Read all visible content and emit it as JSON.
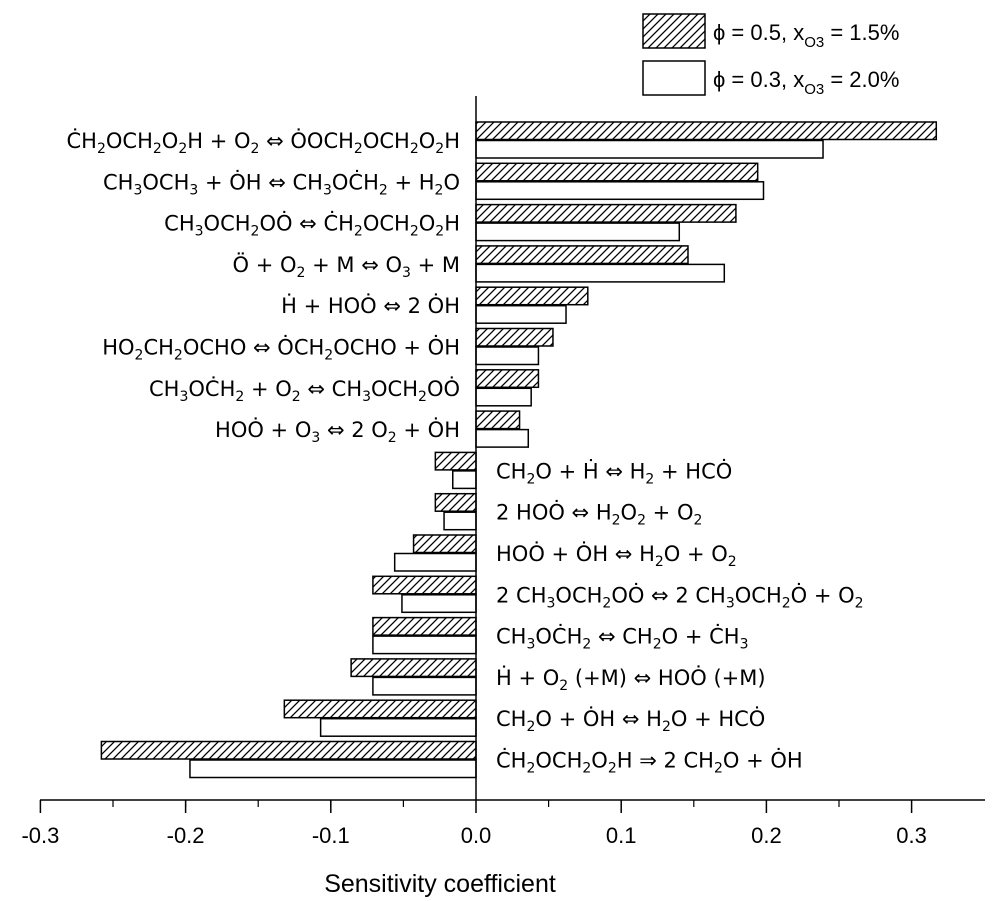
{
  "chart_data": {
    "type": "bar",
    "orientation": "horizontal",
    "xlabel": "Sensitivity coefficient",
    "xlim": [
      -0.3,
      0.35
    ],
    "xticks": [
      "-0.3",
      "-0.2",
      "-0.1",
      "0.0",
      "0.1",
      "0.2",
      "0.3"
    ],
    "xtick_values": [
      -0.3,
      -0.2,
      -0.1,
      0.0,
      0.1,
      0.2,
      0.3
    ],
    "legend_position": "top-right",
    "series": [
      {
        "name_parts": [
          "ϕ = 0.5, x",
          "O3",
          " = 1.5%"
        ],
        "fill": "hatched",
        "values": [
          0.317,
          0.194,
          0.179,
          0.146,
          0.077,
          0.053,
          0.043,
          0.03,
          -0.028,
          -0.028,
          -0.043,
          -0.071,
          -0.071,
          -0.086,
          -0.132,
          -0.258
        ]
      },
      {
        "name_parts": [
          "ϕ = 0.3, x",
          "O3",
          " = 2.0%"
        ],
        "fill": "white",
        "values": [
          0.239,
          0.198,
          0.14,
          0.171,
          0.062,
          0.043,
          0.038,
          0.036,
          -0.016,
          -0.022,
          -0.056,
          -0.051,
          -0.071,
          -0.071,
          -0.107,
          -0.197
        ]
      }
    ],
    "categories": [
      [
        [
          "Ċ",
          ""
        ],
        [
          "H",
          ""
        ],
        [
          "2",
          "sub"
        ],
        [
          "OCH",
          ""
        ],
        [
          "2",
          "sub"
        ],
        [
          "O",
          ""
        ],
        [
          "2",
          "sub"
        ],
        [
          "H + O",
          ""
        ],
        [
          "2",
          "sub"
        ],
        [
          " ⇔ ȮOCH",
          ""
        ],
        [
          "2",
          "sub"
        ],
        [
          "OCH",
          ""
        ],
        [
          "2",
          "sub"
        ],
        [
          "O",
          ""
        ],
        [
          "2",
          "sub"
        ],
        [
          "H",
          ""
        ]
      ],
      [
        [
          "CH",
          ""
        ],
        [
          "3",
          "sub"
        ],
        [
          "OCH",
          ""
        ],
        [
          "3",
          "sub"
        ],
        [
          " + ȮH ⇔ CH",
          ""
        ],
        [
          "3",
          "sub"
        ],
        [
          "OĊH",
          ""
        ],
        [
          "2",
          "sub"
        ],
        [
          " + H",
          ""
        ],
        [
          "2",
          "sub"
        ],
        [
          "O",
          ""
        ]
      ],
      [
        [
          "CH",
          ""
        ],
        [
          "3",
          "sub"
        ],
        [
          "OCH",
          ""
        ],
        [
          "2",
          "sub"
        ],
        [
          "OȮ ⇔ ĊH",
          ""
        ],
        [
          "2",
          "sub"
        ],
        [
          "OCH",
          ""
        ],
        [
          "2",
          "sub"
        ],
        [
          "O",
          ""
        ],
        [
          "2",
          "sub"
        ],
        [
          "H",
          ""
        ]
      ],
      [
        [
          "Ö + O",
          ""
        ],
        [
          "2",
          "sub"
        ],
        [
          " + M ⇔ O",
          ""
        ],
        [
          "3",
          "sub"
        ],
        [
          " + M",
          ""
        ]
      ],
      [
        [
          "Ḣ + HOȮ ⇔ 2 ȮH",
          ""
        ]
      ],
      [
        [
          "HO",
          ""
        ],
        [
          "2",
          "sub"
        ],
        [
          "CH",
          ""
        ],
        [
          "2",
          "sub"
        ],
        [
          "OCHO ⇔ ȮCH",
          ""
        ],
        [
          "2",
          "sub"
        ],
        [
          "OCHO + ȮH",
          ""
        ]
      ],
      [
        [
          "CH",
          ""
        ],
        [
          "3",
          "sub"
        ],
        [
          "OĊH",
          ""
        ],
        [
          "2",
          "sub"
        ],
        [
          " + O",
          ""
        ],
        [
          "2",
          "sub"
        ],
        [
          " ⇔ CH",
          ""
        ],
        [
          "3",
          "sub"
        ],
        [
          "OCH",
          ""
        ],
        [
          "2",
          "sub"
        ],
        [
          "OȮ",
          ""
        ]
      ],
      [
        [
          "HOȮ + O",
          ""
        ],
        [
          "3",
          "sub"
        ],
        [
          " ⇔ 2 O",
          ""
        ],
        [
          "2",
          "sub"
        ],
        [
          " + ȮH",
          ""
        ]
      ],
      [
        [
          "CH",
          ""
        ],
        [
          "2",
          "sub"
        ],
        [
          "O + Ḣ ⇔ H",
          ""
        ],
        [
          "2",
          "sub"
        ],
        [
          " + HCȮ",
          ""
        ]
      ],
      [
        [
          "2 HOȮ ⇔ H",
          ""
        ],
        [
          "2",
          "sub"
        ],
        [
          "O",
          ""
        ],
        [
          "2",
          "sub"
        ],
        [
          " + O",
          ""
        ],
        [
          "2",
          "sub"
        ]
      ],
      [
        [
          "HOȮ + ȮH ⇔ H",
          ""
        ],
        [
          "2",
          "sub"
        ],
        [
          "O + O",
          ""
        ],
        [
          "2",
          "sub"
        ]
      ],
      [
        [
          "2 CH",
          ""
        ],
        [
          "3",
          "sub"
        ],
        [
          "OCH",
          ""
        ],
        [
          "2",
          "sub"
        ],
        [
          "OȮ ⇔ 2 CH",
          ""
        ],
        [
          "3",
          "sub"
        ],
        [
          "OCH",
          ""
        ],
        [
          "2",
          "sub"
        ],
        [
          "Ȯ + O",
          ""
        ],
        [
          "2",
          "sub"
        ]
      ],
      [
        [
          "CH",
          ""
        ],
        [
          "3",
          "sub"
        ],
        [
          "OĊH",
          ""
        ],
        [
          "2",
          "sub"
        ],
        [
          " ⇔ CH",
          ""
        ],
        [
          "2",
          "sub"
        ],
        [
          "O + ĊH",
          ""
        ],
        [
          "3",
          "sub"
        ]
      ],
      [
        [
          "Ḣ + O",
          ""
        ],
        [
          "2",
          "sub"
        ],
        [
          " (+M) ⇔ HOȮ (+M)",
          ""
        ]
      ],
      [
        [
          "CH",
          ""
        ],
        [
          "2",
          "sub"
        ],
        [
          "O + ȮH ⇔ H",
          ""
        ],
        [
          "2",
          "sub"
        ],
        [
          "O + HCȮ",
          ""
        ]
      ],
      [
        [
          "ĊH",
          ""
        ],
        [
          "2",
          "sub"
        ],
        [
          "OCH",
          ""
        ],
        [
          "2",
          "sub"
        ],
        [
          "O",
          ""
        ],
        [
          "2",
          "sub"
        ],
        [
          "H ⇒ 2 CH",
          ""
        ],
        [
          "2",
          "sub"
        ],
        [
          "O + ȮH",
          ""
        ]
      ]
    ]
  }
}
